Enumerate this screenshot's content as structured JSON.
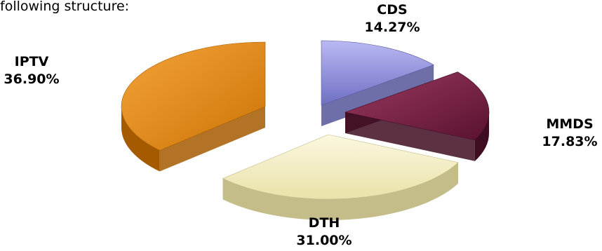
{
  "intro_text": "following structure:",
  "chart_data": {
    "type": "pie",
    "title": "",
    "style": "3d-exploded",
    "slices": [
      {
        "label": "CDS",
        "percent": "14.27%",
        "value": 14.27,
        "color": "#8c8cd8",
        "side": "#55559a"
      },
      {
        "label": "MMDS",
        "percent": "17.83%",
        "value": 17.83,
        "color": "#7a1f44",
        "side": "#3f0d22"
      },
      {
        "label": "DTH",
        "percent": "31.00%",
        "value": 31.0,
        "color": "#f6f1c4",
        "side": "#c4bd8a"
      },
      {
        "label": "IPTV",
        "percent": "36.90%",
        "value": 36.9,
        "color": "#e58a12",
        "side": "#a65a00"
      }
    ]
  }
}
